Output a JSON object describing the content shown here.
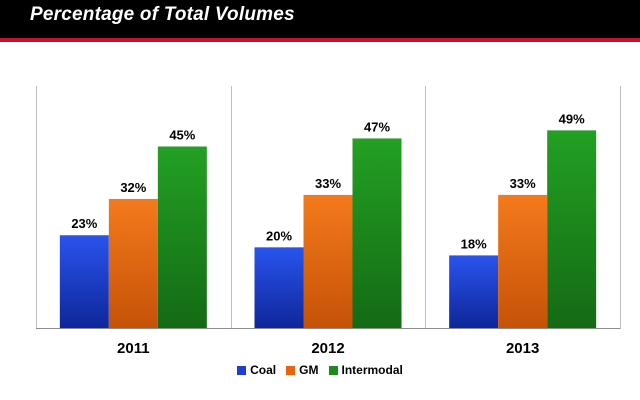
{
  "header": {
    "title": "Percentage of Total Volumes"
  },
  "chart_data": {
    "type": "bar",
    "title": "Percentage of Total Volumes",
    "categories": [
      "2011",
      "2012",
      "2013"
    ],
    "series": [
      {
        "name": "Coal",
        "values": [
          23,
          20,
          18
        ],
        "labels": [
          "23%",
          "20%",
          "18%"
        ],
        "color": "#1b3fd1"
      },
      {
        "name": "GM",
        "values": [
          32,
          33,
          33
        ],
        "labels": [
          "32%",
          "33%",
          "33%"
        ],
        "color": "#e8650f"
      },
      {
        "name": "Intermodal",
        "values": [
          45,
          47,
          49
        ],
        "labels": [
          "45%",
          "47%",
          "49%"
        ],
        "color": "#1e8a1e"
      }
    ],
    "ylim": [
      0,
      60
    ],
    "xlabel": "",
    "ylabel": "",
    "grid": false,
    "legend_position": "bottom"
  }
}
